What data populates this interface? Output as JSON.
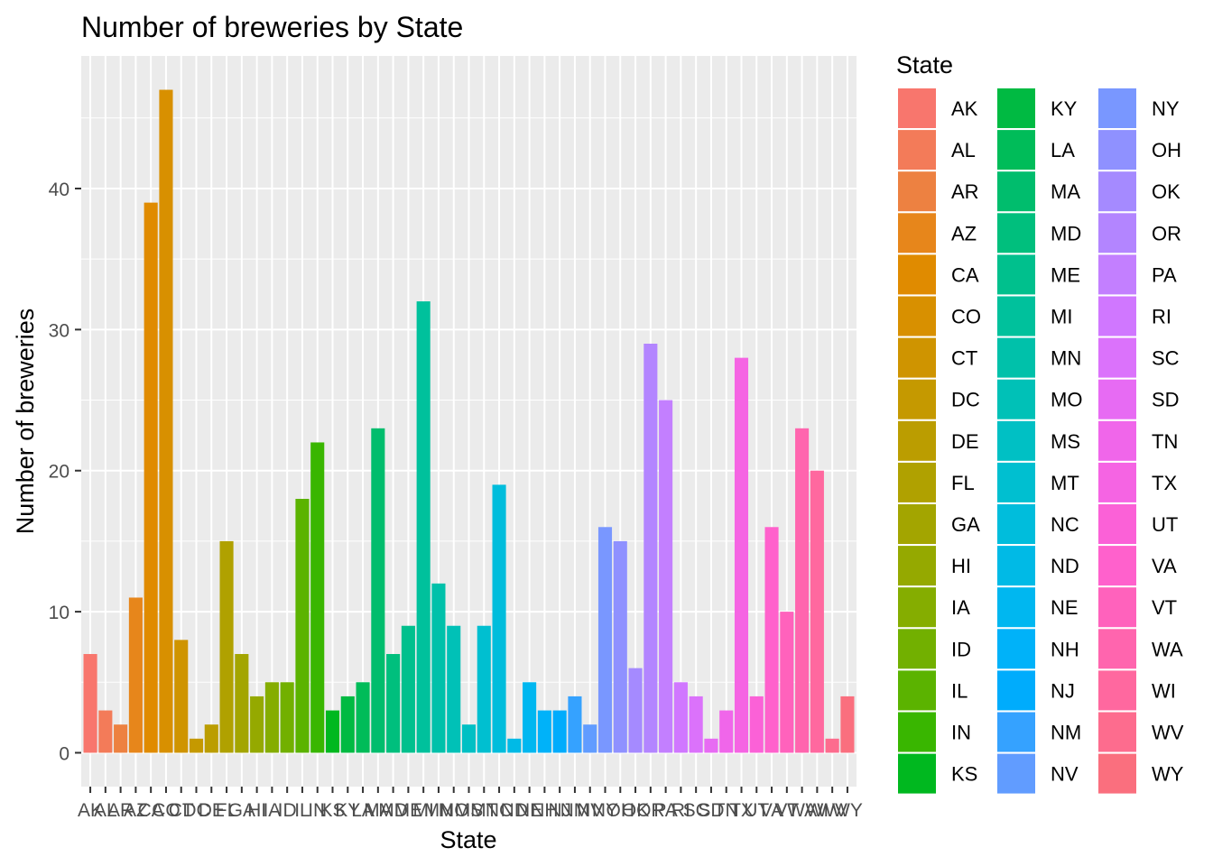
{
  "chart_data": {
    "type": "bar",
    "title": "Number of breweries by State",
    "xlabel": "State",
    "ylabel": "Number of breweries",
    "legend_title": "State",
    "legend_position": "right",
    "ylim": [
      -2.4,
      49.4
    ],
    "yticks": [
      0,
      10,
      20,
      30,
      40
    ],
    "grid": true,
    "categories": [
      "AK",
      "AL",
      "AR",
      "AZ",
      "CA",
      "CO",
      "CT",
      "DC",
      "DE",
      "FL",
      "GA",
      "HI",
      "IA",
      "ID",
      "IL",
      "IN",
      "KS",
      "KY",
      "LA",
      "MA",
      "MD",
      "ME",
      "MI",
      "MN",
      "MO",
      "MS",
      "MT",
      "NC",
      "ND",
      "NE",
      "NH",
      "NJ",
      "NM",
      "NV",
      "NY",
      "OH",
      "OK",
      "OR",
      "PA",
      "RI",
      "SC",
      "SD",
      "TN",
      "TX",
      "UT",
      "VA",
      "VT",
      "WA",
      "WI",
      "WV",
      "WY"
    ],
    "values": [
      7,
      3,
      2,
      11,
      39,
      47,
      8,
      1,
      2,
      15,
      7,
      4,
      5,
      5,
      18,
      22,
      3,
      4,
      5,
      23,
      7,
      9,
      32,
      12,
      9,
      2,
      9,
      19,
      1,
      5,
      3,
      3,
      4,
      2,
      16,
      15,
      6,
      29,
      25,
      5,
      4,
      1,
      3,
      28,
      4,
      16,
      10,
      23,
      20,
      1,
      4
    ],
    "colors": [
      "#F8766D",
      "#F37B59",
      "#ED8141",
      "#E7861B",
      "#E08B00",
      "#D89000",
      "#CF9400",
      "#C59900",
      "#BB9D00",
      "#B0A100",
      "#A3A500",
      "#95A900",
      "#85AD00",
      "#72B000",
      "#5BB300",
      "#39B600",
      "#00B81F",
      "#00BA42",
      "#00BC59",
      "#00BD6D",
      "#00BF7D",
      "#00C08D",
      "#00C19C",
      "#00C1AA",
      "#00C1B7",
      "#00C0C4",
      "#00BFD0",
      "#00BDDC",
      "#00BAE6",
      "#00B7F0",
      "#00B2F9",
      "#00ACFC",
      "#35A2FF",
      "#619CFF",
      "#7997FF",
      "#8F91FF",
      "#A58AFF",
      "#B385FF",
      "#C37FFF",
      "#D077FF",
      "#DB72FB",
      "#E76BF3",
      "#F066EA",
      "#F564E3",
      "#FB61D7",
      "#FF61CC",
      "#FF62BC",
      "#FF65AE",
      "#FF689F",
      "#FD6C8E",
      "#FA6F7E"
    ]
  }
}
